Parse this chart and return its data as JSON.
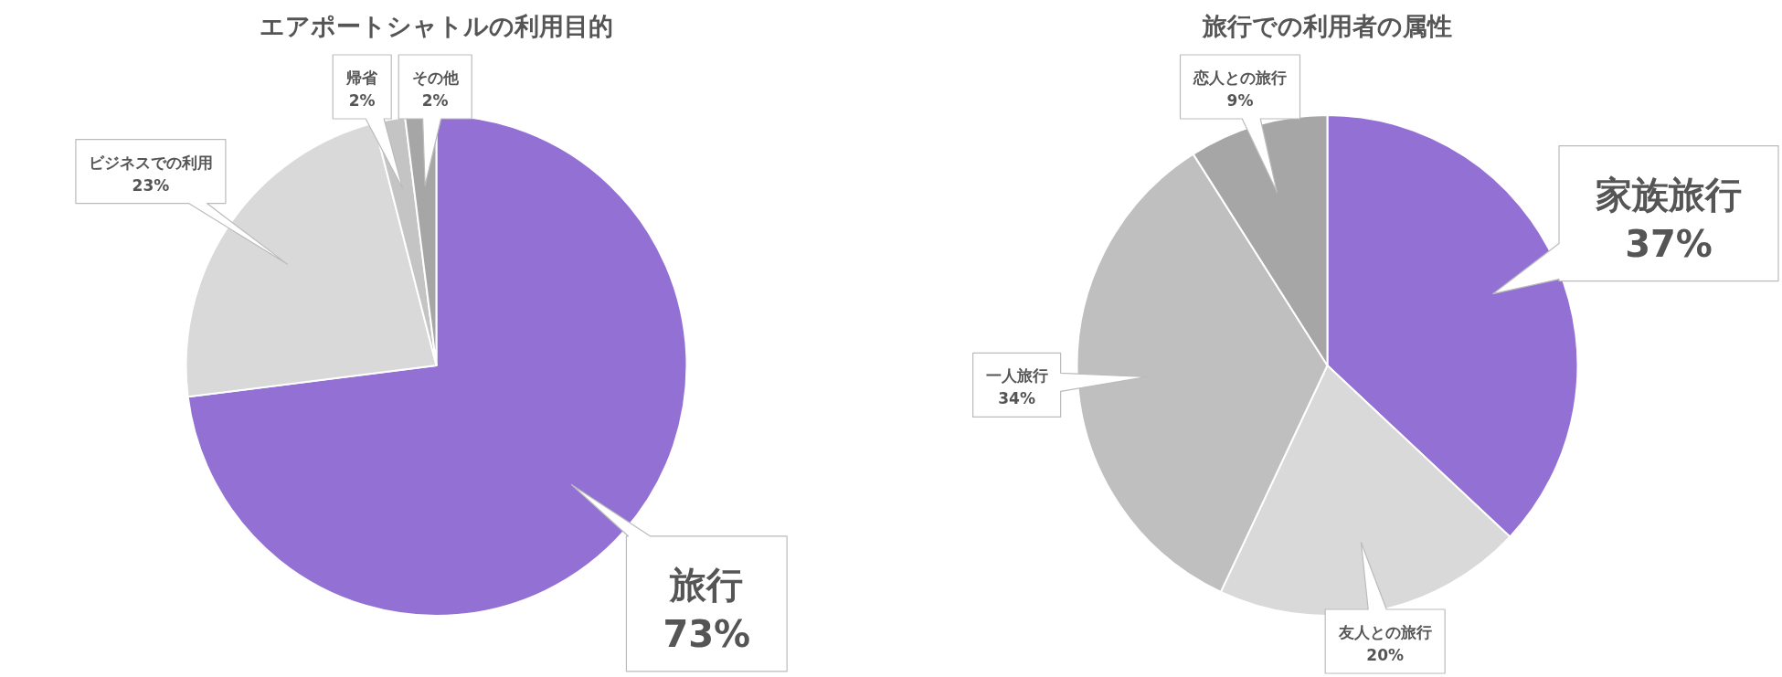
{
  "chart_data": [
    {
      "type": "pie",
      "title": "エアポートシャトルの利用目的",
      "categories": [
        "旅行",
        "ビジネスでの利用",
        "帰省",
        "その他"
      ],
      "values": [
        73,
        23,
        2,
        2
      ],
      "data_labels": true,
      "value_labels": [
        "73%",
        "23%",
        "2%",
        "2%"
      ],
      "colors": [
        "#9370d3",
        "#d9d9d9",
        "#c4c4c4",
        "#a6a6a6"
      ]
    },
    {
      "type": "pie",
      "title": "旅行での利用者の属性",
      "categories": [
        "家族旅行",
        "友人との旅行",
        "一人旅行",
        "恋人との旅行"
      ],
      "values": [
        37,
        20,
        34,
        9
      ],
      "data_labels": true,
      "value_labels": [
        "37%",
        "20%",
        "34%",
        "9%"
      ],
      "colors": [
        "#9370d3",
        "#d9d9d9",
        "#bfbfbf",
        "#a6a6a6"
      ]
    }
  ]
}
